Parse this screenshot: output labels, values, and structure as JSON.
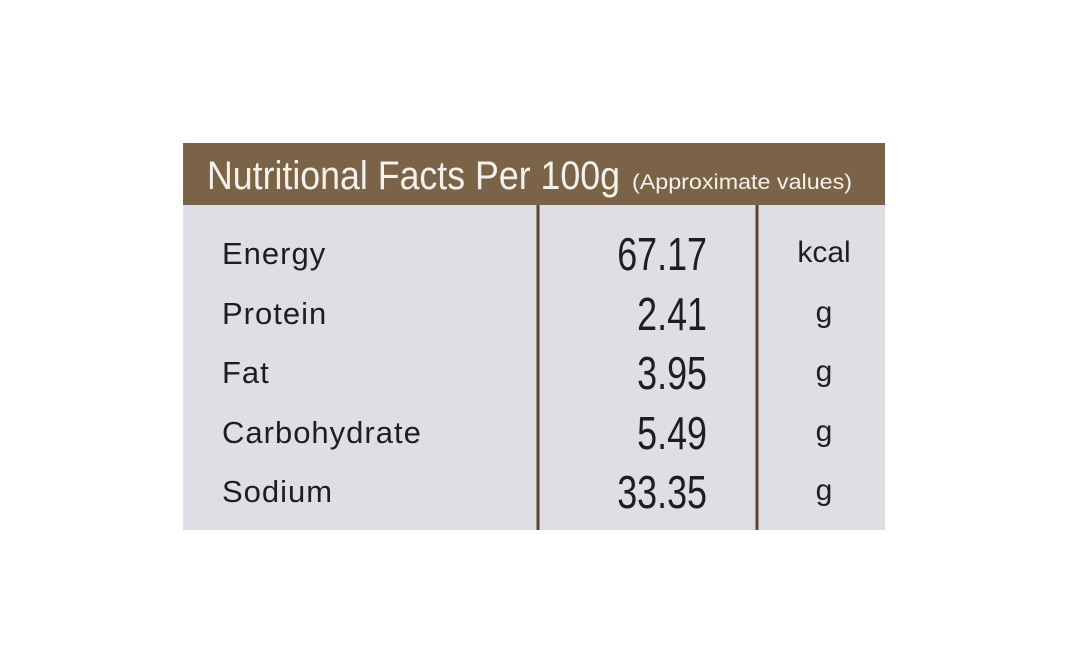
{
  "header": {
    "title": "Nutritional Facts Per 100g",
    "note": "(Approximate values)"
  },
  "table": {
    "rows": [
      [
        "Energy",
        "67.17",
        "kcal"
      ],
      [
        "Protein",
        "2.41",
        "g"
      ],
      [
        "Fat",
        "3.95",
        "g"
      ],
      [
        "Carbohydrate",
        "5.49",
        "g"
      ],
      [
        "Sodium",
        "33.35",
        "g"
      ]
    ]
  }
}
